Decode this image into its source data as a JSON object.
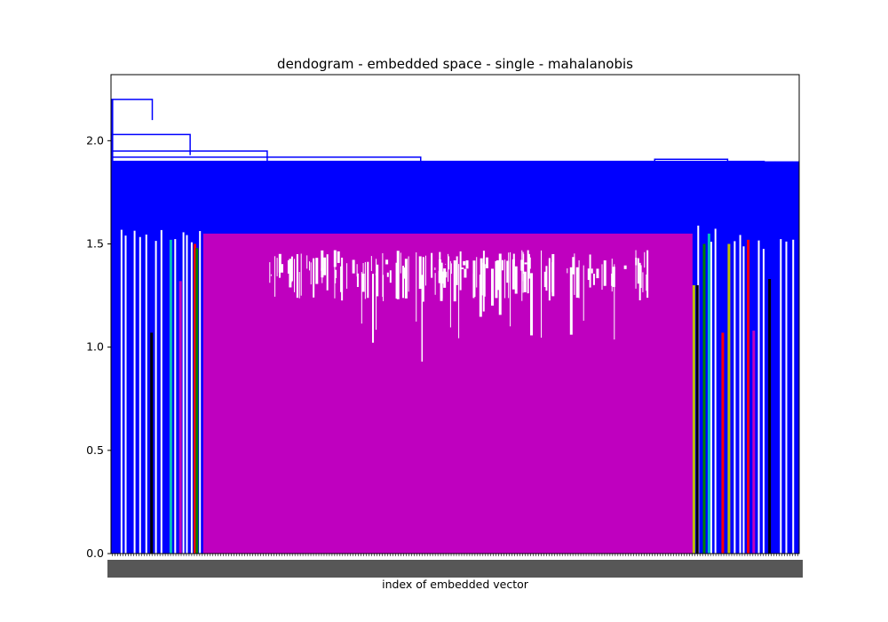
{
  "chart_data": {
    "type": "dendrogram",
    "title": "dendogram - embedded space - single - mahalanobis",
    "xlabel": "index of embedded vector",
    "ylabel": "",
    "ylim": [
      0,
      2.32
    ],
    "yticks": [
      0.0,
      0.5,
      1.0,
      1.5,
      2.0
    ],
    "ytick_labels": [
      "0.0",
      "0.5",
      "1.0",
      "1.5",
      "2.0"
    ],
    "grid": false,
    "legend": "none",
    "colors": {
      "above_threshold": "#0000ff",
      "main_cluster": "#bf00bf",
      "cyan": "#00bfbf",
      "green": "#008000",
      "red": "#ff0000",
      "olive": "#bfbf00",
      "black": "#000000"
    },
    "top_merges": [
      {
        "height": 2.2,
        "span": [
          0.0,
          0.06
        ]
      },
      {
        "height": 2.03,
        "span": [
          0.0,
          0.115
        ]
      },
      {
        "height": 1.95,
        "span": [
          0.0,
          0.227
        ]
      },
      {
        "height": 1.92,
        "span": [
          0.0,
          0.45
        ]
      },
      {
        "height": 1.91,
        "span": [
          0.79,
          0.896
        ]
      },
      {
        "height": 1.9,
        "span": [
          0.0,
          0.95
        ]
      },
      {
        "height": 1.88,
        "span": [
          0.17,
          0.675
        ]
      },
      {
        "height": 1.87,
        "span": [
          0.01,
          0.335
        ]
      },
      {
        "height": 1.86,
        "span": [
          0.676,
          0.99
        ]
      },
      {
        "height": 1.85,
        "span": [
          0.01,
          0.67
        ]
      },
      {
        "height": 1.84,
        "span": [
          0.05,
          0.92
        ]
      },
      {
        "height": 1.8,
        "span": [
          0.02,
          0.73
        ]
      },
      {
        "height": 1.78,
        "span": [
          0.02,
          0.825
        ]
      },
      {
        "height": 1.77,
        "span": [
          0.02,
          0.69
        ]
      },
      {
        "height": 1.74,
        "span": [
          0.03,
          0.22
        ]
      },
      {
        "height": 1.74,
        "span": [
          0.86,
          0.965
        ]
      },
      {
        "height": 1.72,
        "span": [
          0.03,
          0.185
        ]
      }
    ],
    "main_cluster": {
      "color": "main_cluster",
      "x_range": [
        0.134,
        0.845
      ],
      "height": 1.55,
      "lowest_merge": 0.93
    },
    "colored_clusters": [
      {
        "color": "cyan",
        "x": 0.085,
        "height": 1.52
      },
      {
        "color": "main_cluster",
        "x": 0.099,
        "height": 1.32
      },
      {
        "color": "black",
        "x": 0.057,
        "height": 1.07
      },
      {
        "color": "red",
        "x": 0.12,
        "height": 1.5
      },
      {
        "color": "green",
        "x": 0.123,
        "height": 1.48
      },
      {
        "color": "olive",
        "x": 0.845,
        "height": 1.3
      },
      {
        "color": "black",
        "x": 0.85,
        "height": 1.3
      },
      {
        "color": "green",
        "x": 0.86,
        "height": 1.5
      },
      {
        "color": "cyan",
        "x": 0.867,
        "height": 1.55
      },
      {
        "color": "red",
        "x": 0.887,
        "height": 1.07
      },
      {
        "color": "olive",
        "x": 0.896,
        "height": 1.5
      },
      {
        "color": "red",
        "x": 0.924,
        "height": 1.52
      },
      {
        "color": "main_cluster",
        "x": 0.932,
        "height": 1.08
      },
      {
        "color": "black",
        "x": 0.955,
        "height": 1.33
      }
    ]
  }
}
